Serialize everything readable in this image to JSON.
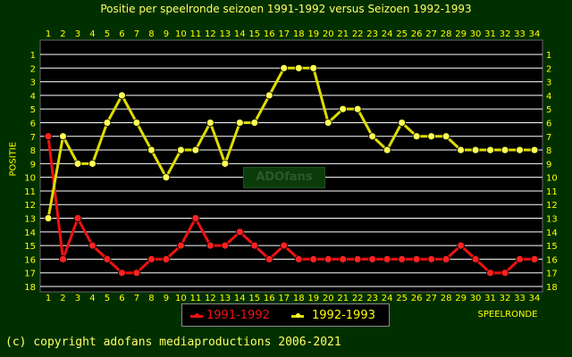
{
  "header": {
    "title": "Positie per speelronde seizoen 1991-1992 versus Seizoen 1992-1993"
  },
  "footer": {
    "copyright": "(c) copyright adofans mediaproductions 2006-2021"
  },
  "watermark": "ADOfans",
  "colors": {
    "background": "#003000",
    "plot_bg": "#000000",
    "grid": "#ffffff",
    "text": "#ffff00",
    "series_1991": "#ee1111",
    "series_1992": "#dddd00"
  },
  "chart_data": {
    "type": "line",
    "title": "Positie per speelronde seizoen 1991-1992 versus Seizoen 1992-1993",
    "xlabel": "SPEELRONDE",
    "ylabel": "POSITIE",
    "x": [
      1,
      2,
      3,
      4,
      5,
      6,
      7,
      8,
      9,
      10,
      11,
      12,
      13,
      14,
      15,
      16,
      17,
      18,
      19,
      20,
      21,
      22,
      23,
      24,
      25,
      26,
      27,
      28,
      29,
      30,
      31,
      32,
      33,
      34
    ],
    "xlim": [
      1,
      34
    ],
    "ylim": [
      18,
      1
    ],
    "y_inverted": true,
    "yticks": [
      1,
      2,
      3,
      4,
      5,
      6,
      7,
      8,
      9,
      10,
      11,
      12,
      13,
      14,
      15,
      16,
      17,
      18
    ],
    "grid": "horizontal",
    "legend_position": "bottom",
    "series": [
      {
        "name": "1991-1992",
        "color": "#ee1111",
        "values": [
          7,
          16,
          13,
          15,
          16,
          17,
          17,
          16,
          16,
          15,
          13,
          15,
          15,
          14,
          15,
          16,
          15,
          16,
          16,
          16,
          16,
          16,
          16,
          16,
          16,
          16,
          16,
          16,
          15,
          16,
          17,
          17,
          16,
          16
        ]
      },
      {
        "name": "1992-1993",
        "color": "#dddd00",
        "values": [
          13,
          7,
          9,
          9,
          6,
          4,
          6,
          8,
          10,
          8,
          8,
          6,
          9,
          6,
          6,
          4,
          2,
          2,
          2,
          6,
          5,
          5,
          7,
          8,
          6,
          7,
          7,
          7,
          8,
          8,
          8,
          8,
          8,
          8
        ]
      }
    ]
  }
}
